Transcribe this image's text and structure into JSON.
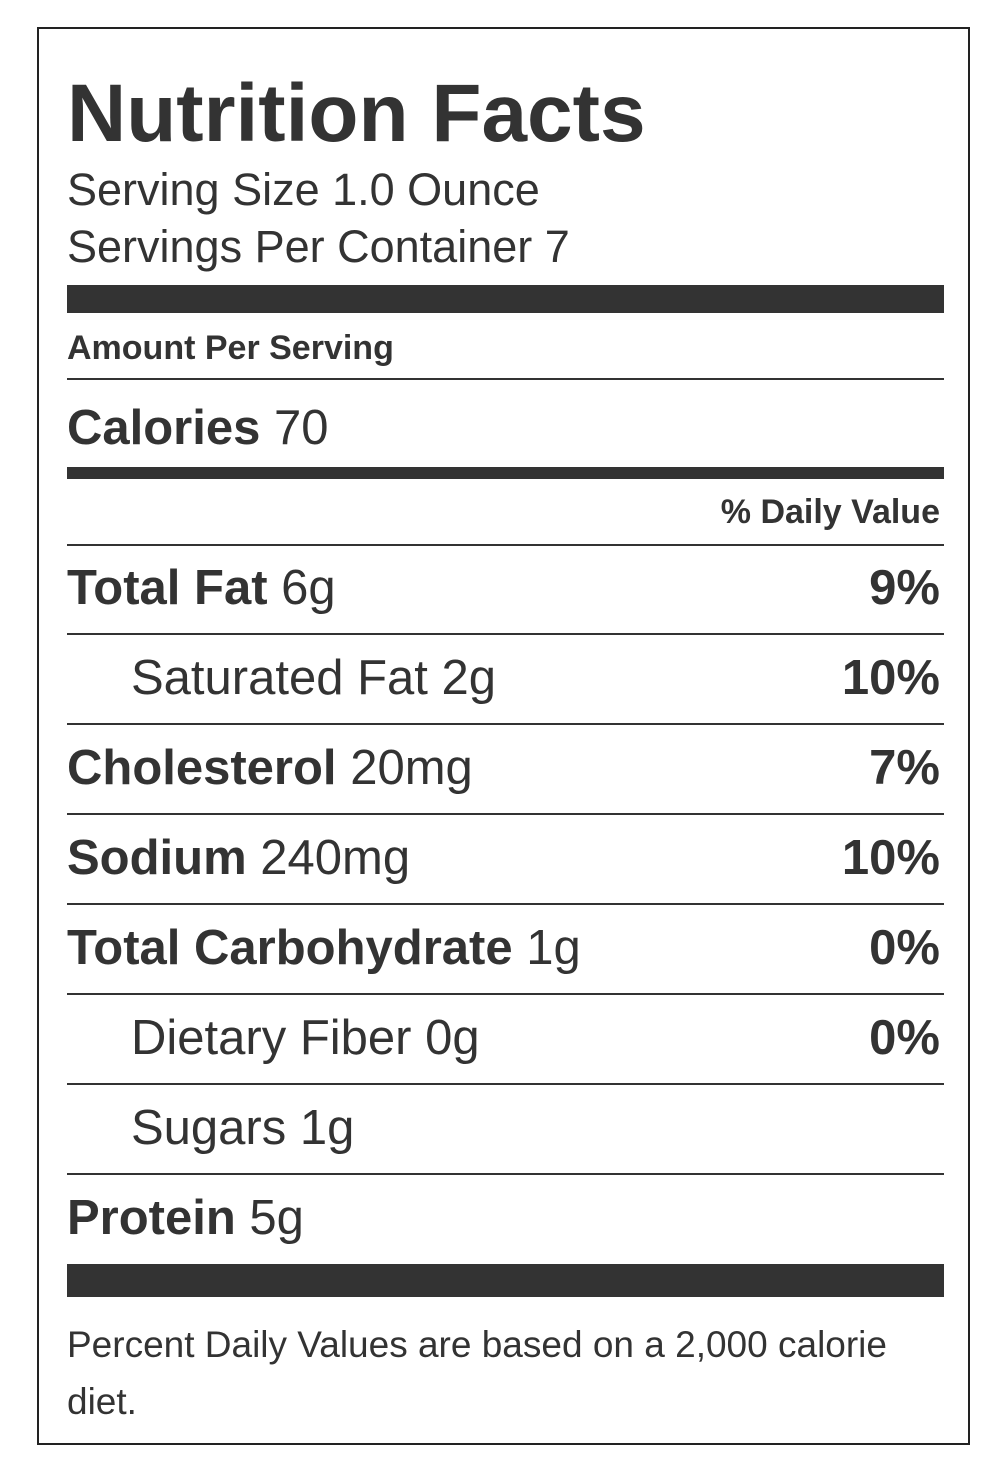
{
  "title": "Nutrition Facts",
  "serving_size": "Serving Size 1.0 Ounce",
  "servings_per_container": "Servings Per Container 7",
  "amount_per_serving": "Amount Per Serving",
  "calories": {
    "label": "Calories",
    "value": "70"
  },
  "daily_value_header": "% Daily Value",
  "nutrients": [
    {
      "name": "Total Fat",
      "amount": "6g",
      "dv": "9%",
      "sub": [
        {
          "name": "Saturated Fat",
          "amount": "2g",
          "dv": "10%"
        }
      ]
    },
    {
      "name": "Cholesterol",
      "amount": "20mg",
      "dv": "7%"
    },
    {
      "name": "Sodium",
      "amount": "240mg",
      "dv": "10%"
    },
    {
      "name": "Total Carbohydrate",
      "amount": "1g",
      "dv": "0%",
      "sub": [
        {
          "name": "Dietary Fiber",
          "amount": "0g",
          "dv": "0%"
        },
        {
          "name": "Sugars",
          "amount": "1g"
        }
      ]
    },
    {
      "name": "Protein",
      "amount": "5g"
    }
  ],
  "footnote": "Percent Daily Values are based on a 2,000 calorie diet."
}
